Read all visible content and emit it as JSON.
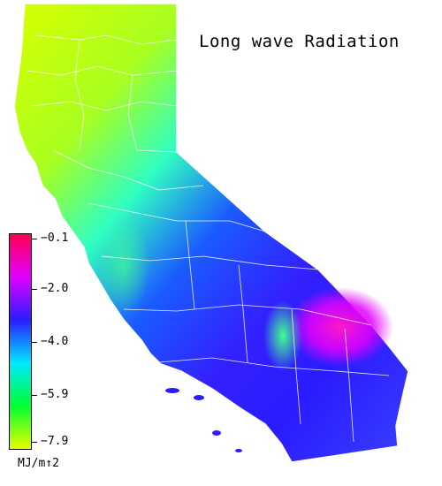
{
  "map": {
    "title": "Long wave Radiation",
    "region": "California",
    "background_color": "#ffffff",
    "border_color": "#ffffff"
  },
  "legend": {
    "unit": "MJ/m↑2",
    "ticks": [
      "−0.1",
      "−2.0",
      "−4.0",
      "−5.9",
      "−7.9"
    ],
    "colors": [
      "#ff0055",
      "#e000ff",
      "#2a1cff",
      "#00e8ff",
      "#00ff30",
      "#e8ff00"
    ]
  }
}
